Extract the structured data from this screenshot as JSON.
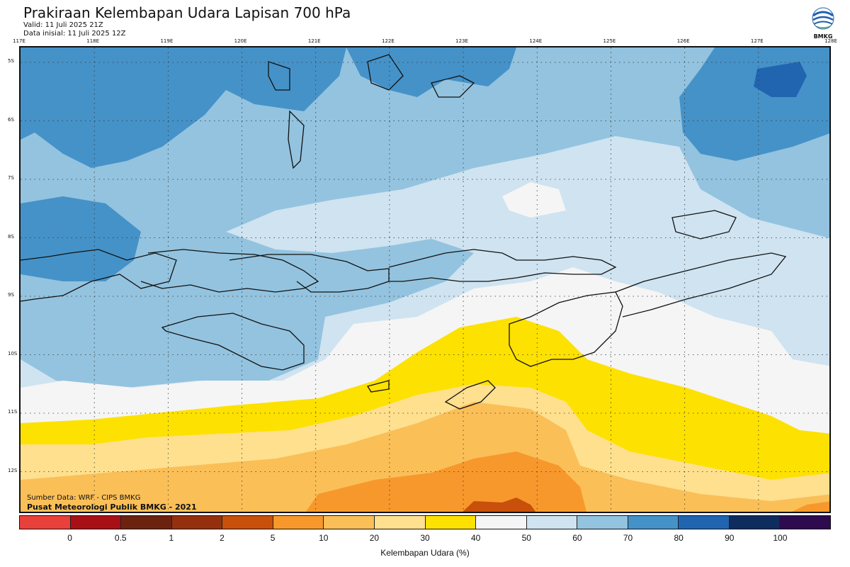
{
  "header": {
    "title": "Prakiraan Kelembapan Udara Lapisan 700 hPa",
    "valid": "Valid: 11 Juli 2025 21Z",
    "init": "Data inisial: 11 Juli 2025 12Z",
    "logo_text": "BMKG"
  },
  "axes": {
    "longitudes": [
      "117E",
      "118E",
      "119E",
      "120E",
      "121E",
      "122E",
      "123E",
      "124E",
      "125E",
      "126E",
      "127E",
      "128E"
    ],
    "latitudes": [
      "5S",
      "6S",
      "7S",
      "8S",
      "9S",
      "10S",
      "11S",
      "12S"
    ]
  },
  "credits": {
    "source": "Sumber Data: WRF - CIPS BMKG",
    "office": "Pusat Meteorologi Publik BMKG - 2021"
  },
  "legend": {
    "title": "Kelembapan Udara (%)",
    "ticks": [
      "0",
      "0.5",
      "1",
      "2",
      "5",
      "10",
      "20",
      "30",
      "40",
      "50",
      "60",
      "70",
      "80",
      "90",
      "100"
    ],
    "colors": [
      "#e8403a",
      "#a81015",
      "#6b2310",
      "#95300e",
      "#c8500a",
      "#f7982c",
      "#fbbf58",
      "#fee08f",
      "#fde100",
      "#f5f5f5",
      "#cfe3f0",
      "#93c3df",
      "#4592c8",
      "#2165b0",
      "#0e2c5e",
      "#2e0a4f"
    ]
  }
}
